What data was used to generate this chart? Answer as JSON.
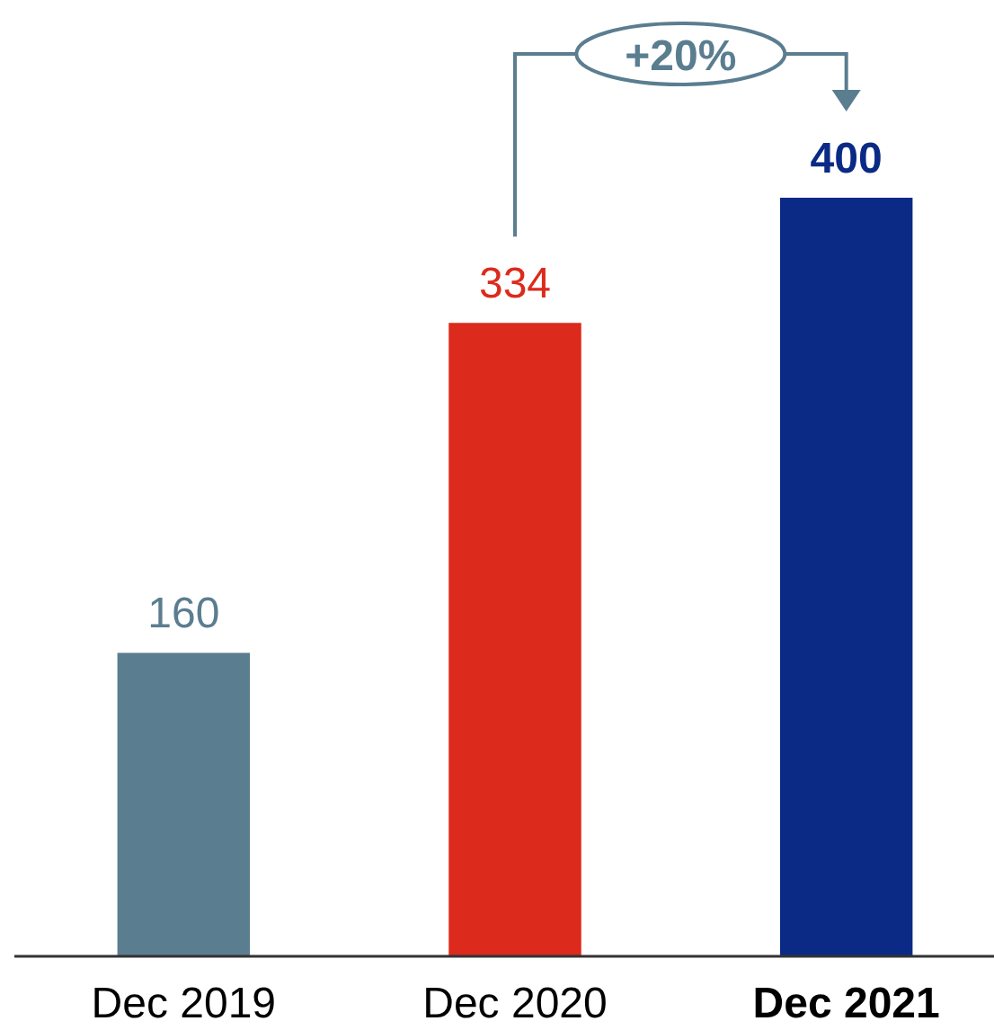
{
  "chart_data": {
    "type": "bar",
    "categories": [
      "Dec 2019",
      "Dec 2020",
      "Dec 2021"
    ],
    "values": [
      160,
      334,
      400
    ],
    "colors": [
      "#5b7d90",
      "#dc2a1c",
      "#0a2a86"
    ],
    "data_labels": true,
    "annotations": [
      "+20%"
    ]
  }
}
